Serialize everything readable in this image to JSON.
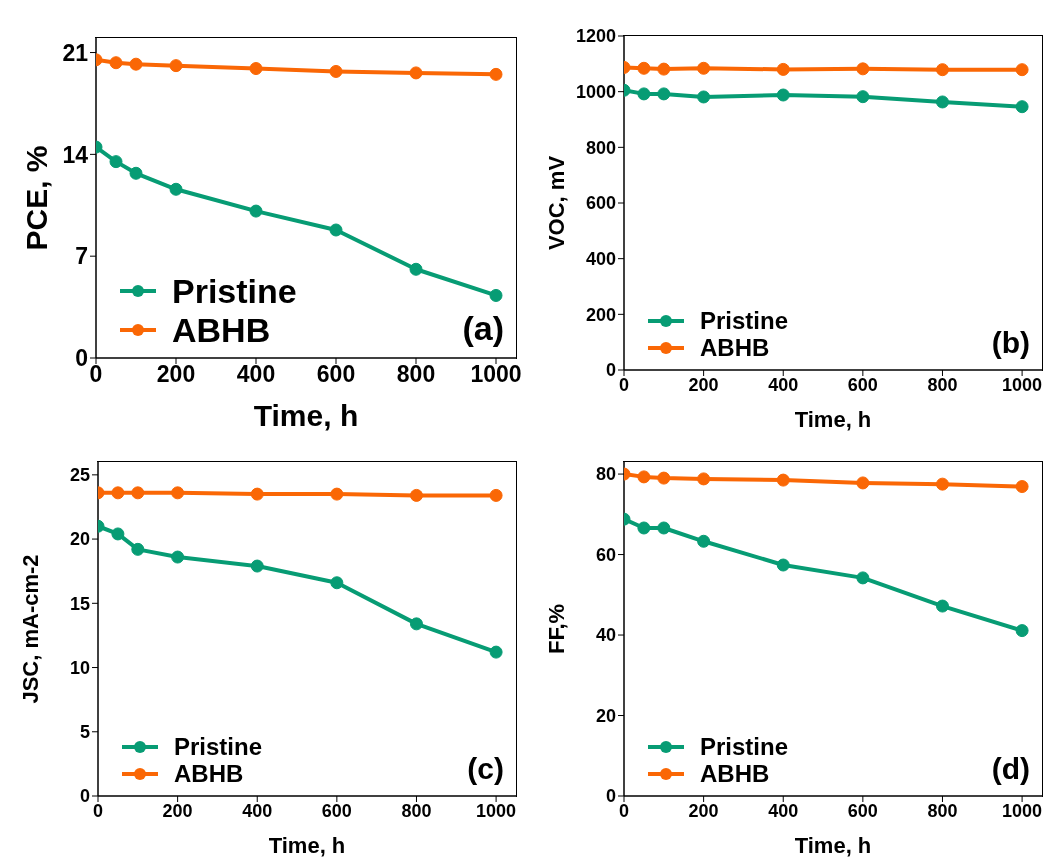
{
  "chart_data": [
    {
      "type": "line",
      "xlabel": "Time, h",
      "ylabel": "PCE, %",
      "xlim": [
        0,
        1050
      ],
      "xticks": [
        0,
        200,
        400,
        600,
        800,
        1000
      ],
      "ylim": [
        0,
        22
      ],
      "yticks": [
        0,
        7,
        14,
        21
      ],
      "x": [
        0,
        50,
        100,
        200,
        400,
        600,
        800,
        1000
      ],
      "marker": "circle",
      "line_style": "solid",
      "grid": false,
      "legend": "bottom left",
      "annotations": [
        "(a)"
      ],
      "series": [
        {
          "name": "Pristine",
          "color": "#079c74",
          "values": [
            14.5,
            13.5,
            12.7,
            11.6,
            10.1,
            8.8,
            6.1,
            4.3
          ]
        },
        {
          "name": "ABHB",
          "color": "#fa6705",
          "values": [
            20.5,
            20.3,
            20.2,
            20.1,
            19.9,
            19.7,
            19.6,
            19.5
          ]
        }
      ]
    },
    {
      "type": "line",
      "xlabel": "Time, h",
      "ylabel": "VOC, mV",
      "xlim": [
        0,
        1050
      ],
      "xticks": [
        0,
        200,
        400,
        600,
        800,
        1000
      ],
      "ylim": [
        0,
        1200
      ],
      "yticks": [
        0,
        200,
        400,
        600,
        800,
        1000,
        1200
      ],
      "x": [
        0,
        50,
        100,
        200,
        400,
        600,
        800,
        1000
      ],
      "marker": "circle",
      "line_style": "solid",
      "grid": false,
      "legend": "bottom left",
      "annotations": [
        "(b)"
      ],
      "series": [
        {
          "name": "Pristine",
          "color": "#079c74",
          "values": [
            1005,
            992,
            992,
            981,
            988,
            982,
            963,
            946
          ]
        },
        {
          "name": "ABHB",
          "color": "#fa6705",
          "values": [
            1087,
            1084,
            1081,
            1084,
            1080,
            1082,
            1079,
            1079
          ]
        }
      ]
    },
    {
      "type": "line",
      "xlabel": "Time, h",
      "ylabel": "JSC, mA-cm-2",
      "xlim": [
        0,
        1050
      ],
      "xticks": [
        0,
        200,
        400,
        600,
        800,
        1000
      ],
      "ylim": [
        0,
        26
      ],
      "yticks": [
        0,
        5,
        10,
        15,
        20,
        25
      ],
      "x": [
        0,
        50,
        100,
        200,
        400,
        600,
        800,
        1000
      ],
      "marker": "circle",
      "line_style": "solid",
      "grid": false,
      "legend": "bottom left",
      "annotations": [
        "(c)"
      ],
      "series": [
        {
          "name": "Pristine",
          "color": "#079c74",
          "values": [
            21.0,
            20.4,
            19.2,
            18.6,
            17.9,
            16.6,
            13.4,
            11.2
          ]
        },
        {
          "name": "ABHB",
          "color": "#fa6705",
          "values": [
            23.6,
            23.6,
            23.6,
            23.6,
            23.5,
            23.5,
            23.4,
            23.4
          ]
        }
      ]
    },
    {
      "type": "line",
      "xlabel": "Time, h",
      "ylabel": "FF,%",
      "xlim": [
        0,
        1050
      ],
      "xticks": [
        0,
        200,
        400,
        600,
        800,
        1000
      ],
      "ylim": [
        0,
        83
      ],
      "yticks": [
        0,
        20,
        40,
        60,
        80
      ],
      "x": [
        0,
        50,
        100,
        200,
        400,
        600,
        800,
        1000
      ],
      "marker": "circle",
      "line_style": "solid",
      "grid": false,
      "legend": "bottom left",
      "annotations": [
        "(d)"
      ],
      "series": [
        {
          "name": "Pristine",
          "color": "#079c74",
          "values": [
            68.8,
            66.6,
            66.6,
            63.3,
            57.4,
            54.2,
            47.2,
            41.1
          ]
        },
        {
          "name": "ABHB",
          "color": "#fa6705",
          "values": [
            80.0,
            79.3,
            79.0,
            78.8,
            78.5,
            77.8,
            77.5,
            76.9
          ]
        }
      ]
    }
  ]
}
